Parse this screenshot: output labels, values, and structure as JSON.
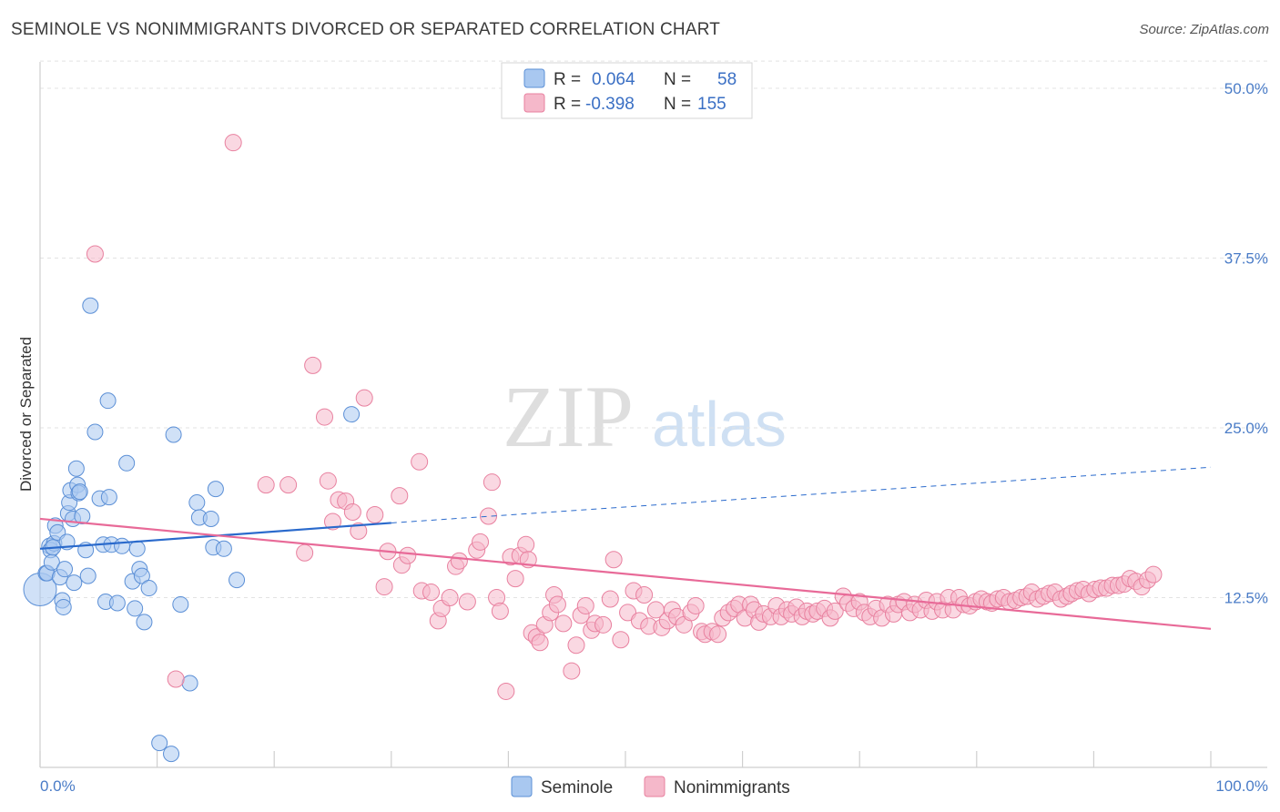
{
  "header": {
    "title": "SEMINOLE VS NONIMMIGRANTS DIVORCED OR SEPARATED CORRELATION CHART",
    "source": "Source: ZipAtlas.com"
  },
  "watermark": {
    "zip": "ZIP",
    "atlas": "atlas"
  },
  "legend": {
    "rows": [
      {
        "r_label": "R =",
        "r_value": "0.064",
        "n_label": "N =",
        "n_value": "58",
        "color": "#a9c8f0"
      },
      {
        "r_label": "R =",
        "r_value": "-0.398",
        "n_label": "N =",
        "n_value": "155",
        "color": "#f5b8ca"
      }
    ]
  },
  "bottom_legend": {
    "series1": "Seminole",
    "series2": "Nonimmigrants"
  },
  "colors": {
    "seminole_fill": "#a9c8f0",
    "seminole_stroke": "#5b8fd6",
    "seminole_line": "#2a6acc",
    "nonimm_fill": "#f5b8ca",
    "nonimm_stroke": "#e8809f",
    "nonimm_line": "#e86a98"
  },
  "chart_data": {
    "type": "scatter",
    "title": "SEMINOLE VS NONIMMIGRANTS DIVORCED OR SEPARATED CORRELATION CHART",
    "xlabel": "",
    "ylabel": "Divorced or Separated",
    "xlim": [
      0,
      100
    ],
    "ylim": [
      0,
      52
    ],
    "x_tick_labels": [
      "0.0%",
      "100.0%"
    ],
    "y_ticks": [
      12.5,
      25.0,
      37.5,
      50.0
    ],
    "y_tick_labels": [
      "12.5%",
      "25.0%",
      "37.5%",
      "50.0%"
    ],
    "grid": true,
    "series": [
      {
        "name": "Seminole",
        "r": 0.064,
        "n": 58,
        "trend": {
          "x0": 0,
          "y0": 16.1,
          "x1": 30,
          "y1": 18.0,
          "dash_x1": 100,
          "dash_y1": 22.1
        },
        "points": [
          [
            0,
            13.1
          ],
          [
            0.5,
            14.3
          ],
          [
            0.6,
            14.3
          ],
          [
            0.8,
            16.3
          ],
          [
            0.9,
            16.0
          ],
          [
            1.0,
            15.1
          ],
          [
            1.2,
            16.5
          ],
          [
            1.3,
            17.8
          ],
          [
            1.5,
            17.3
          ],
          [
            1.7,
            14.0
          ],
          [
            1.9,
            12.3
          ],
          [
            2.0,
            11.8
          ],
          [
            2.1,
            14.6
          ],
          [
            2.3,
            16.6
          ],
          [
            2.4,
            18.7
          ],
          [
            2.5,
            19.5
          ],
          [
            2.6,
            20.4
          ],
          [
            2.8,
            18.3
          ],
          [
            2.9,
            13.6
          ],
          [
            3.1,
            22.0
          ],
          [
            3.2,
            20.8
          ],
          [
            3.3,
            20.2
          ],
          [
            3.4,
            20.3
          ],
          [
            3.6,
            18.5
          ],
          [
            3.9,
            16.0
          ],
          [
            4.1,
            14.1
          ],
          [
            4.3,
            34.0
          ],
          [
            4.7,
            24.7
          ],
          [
            5.1,
            19.8
          ],
          [
            5.4,
            16.4
          ],
          [
            5.6,
            12.2
          ],
          [
            5.8,
            27.0
          ],
          [
            6.1,
            16.4
          ],
          [
            6.6,
            12.1
          ],
          [
            7.0,
            16.3
          ],
          [
            7.4,
            22.4
          ],
          [
            7.9,
            13.7
          ],
          [
            8.3,
            16.1
          ],
          [
            8.5,
            14.6
          ],
          [
            8.7,
            14.1
          ],
          [
            8.9,
            10.7
          ],
          [
            9.3,
            13.2
          ],
          [
            10.2,
            1.8
          ],
          [
            11.2,
            1.0
          ],
          [
            11.4,
            24.5
          ],
          [
            12.0,
            12.0
          ],
          [
            12.8,
            6.2
          ],
          [
            13.4,
            19.5
          ],
          [
            13.6,
            18.4
          ],
          [
            14.6,
            18.3
          ],
          [
            14.8,
            16.2
          ],
          [
            15.0,
            20.5
          ],
          [
            15.7,
            16.1
          ],
          [
            16.8,
            13.8
          ],
          [
            26.6,
            26.0
          ],
          [
            5.9,
            19.9
          ],
          [
            8.1,
            11.7
          ],
          [
            1.1,
            16.2
          ]
        ]
      },
      {
        "name": "Nonimmigrants",
        "r": -0.398,
        "n": 155,
        "trend": {
          "x0": 0,
          "y0": 18.3,
          "x1": 100,
          "y1": 10.2
        },
        "points": [
          [
            4.7,
            37.8
          ],
          [
            11.6,
            6.5
          ],
          [
            16.5,
            46.0
          ],
          [
            19.3,
            20.8
          ],
          [
            21.2,
            20.8
          ],
          [
            22.6,
            15.8
          ],
          [
            23.3,
            29.6
          ],
          [
            24.3,
            25.8
          ],
          [
            24.6,
            21.1
          ],
          [
            25.0,
            18.1
          ],
          [
            25.5,
            19.7
          ],
          [
            26.1,
            19.6
          ],
          [
            26.7,
            18.8
          ],
          [
            27.2,
            17.4
          ],
          [
            27.7,
            27.2
          ],
          [
            28.6,
            18.6
          ],
          [
            29.4,
            13.3
          ],
          [
            29.7,
            15.9
          ],
          [
            30.7,
            20.0
          ],
          [
            30.9,
            14.9
          ],
          [
            31.4,
            15.6
          ],
          [
            32.4,
            22.5
          ],
          [
            32.6,
            13.0
          ],
          [
            33.4,
            12.9
          ],
          [
            34.0,
            10.8
          ],
          [
            34.3,
            11.7
          ],
          [
            35.0,
            12.5
          ],
          [
            35.5,
            14.8
          ],
          [
            35.8,
            15.2
          ],
          [
            36.5,
            12.2
          ],
          [
            37.3,
            16.0
          ],
          [
            37.6,
            16.6
          ],
          [
            38.3,
            18.5
          ],
          [
            38.6,
            21.0
          ],
          [
            39.0,
            12.5
          ],
          [
            39.3,
            11.5
          ],
          [
            39.8,
            5.6
          ],
          [
            40.2,
            15.5
          ],
          [
            40.6,
            13.9
          ],
          [
            41.0,
            15.6
          ],
          [
            41.5,
            16.4
          ],
          [
            41.7,
            15.3
          ],
          [
            42.0,
            9.9
          ],
          [
            42.4,
            9.6
          ],
          [
            42.7,
            9.2
          ],
          [
            43.1,
            10.5
          ],
          [
            43.6,
            11.4
          ],
          [
            43.9,
            12.7
          ],
          [
            44.2,
            12.0
          ],
          [
            44.7,
            10.6
          ],
          [
            45.4,
            7.1
          ],
          [
            45.8,
            9.0
          ],
          [
            46.2,
            11.2
          ],
          [
            46.6,
            11.9
          ],
          [
            47.1,
            10.1
          ],
          [
            47.4,
            10.6
          ],
          [
            48.1,
            10.5
          ],
          [
            48.7,
            12.4
          ],
          [
            49.0,
            15.3
          ],
          [
            49.6,
            9.4
          ],
          [
            50.2,
            11.4
          ],
          [
            50.7,
            13.0
          ],
          [
            51.2,
            10.8
          ],
          [
            51.6,
            12.7
          ],
          [
            52.0,
            10.4
          ],
          [
            52.6,
            11.6
          ],
          [
            53.1,
            10.3
          ],
          [
            53.6,
            10.8
          ],
          [
            54.0,
            11.6
          ],
          [
            54.4,
            11.1
          ],
          [
            55.0,
            10.5
          ],
          [
            55.6,
            11.4
          ],
          [
            56.0,
            11.9
          ],
          [
            56.5,
            10.0
          ],
          [
            56.8,
            9.8
          ],
          [
            57.4,
            10.0
          ],
          [
            57.9,
            9.8
          ],
          [
            58.3,
            11.0
          ],
          [
            58.8,
            11.4
          ],
          [
            59.3,
            11.7
          ],
          [
            59.7,
            12.0
          ],
          [
            60.2,
            11.0
          ],
          [
            60.7,
            12.0
          ],
          [
            61.0,
            11.6
          ],
          [
            61.4,
            10.7
          ],
          [
            61.8,
            11.3
          ],
          [
            62.4,
            11.1
          ],
          [
            62.9,
            11.9
          ],
          [
            63.3,
            11.1
          ],
          [
            63.8,
            11.6
          ],
          [
            64.2,
            11.3
          ],
          [
            64.6,
            11.8
          ],
          [
            65.1,
            11.1
          ],
          [
            65.5,
            11.5
          ],
          [
            66.0,
            11.3
          ],
          [
            66.4,
            11.5
          ],
          [
            67.0,
            11.7
          ],
          [
            67.5,
            11.0
          ],
          [
            67.9,
            11.5
          ],
          [
            68.6,
            12.6
          ],
          [
            69.0,
            12.1
          ],
          [
            69.5,
            11.7
          ],
          [
            70.0,
            12.2
          ],
          [
            70.4,
            11.4
          ],
          [
            70.9,
            11.1
          ],
          [
            71.4,
            11.7
          ],
          [
            71.9,
            11.0
          ],
          [
            72.4,
            12.0
          ],
          [
            72.9,
            11.3
          ],
          [
            73.3,
            12.0
          ],
          [
            73.8,
            12.2
          ],
          [
            74.3,
            11.4
          ],
          [
            74.7,
            12.0
          ],
          [
            75.2,
            11.6
          ],
          [
            75.7,
            12.3
          ],
          [
            76.2,
            11.5
          ],
          [
            76.6,
            12.2
          ],
          [
            77.1,
            11.6
          ],
          [
            77.6,
            12.5
          ],
          [
            78.0,
            11.6
          ],
          [
            78.5,
            12.5
          ],
          [
            78.9,
            12.0
          ],
          [
            79.4,
            11.9
          ],
          [
            79.9,
            12.2
          ],
          [
            80.4,
            12.4
          ],
          [
            80.9,
            12.2
          ],
          [
            81.3,
            12.1
          ],
          [
            81.8,
            12.4
          ],
          [
            82.3,
            12.5
          ],
          [
            82.8,
            12.2
          ],
          [
            83.3,
            12.3
          ],
          [
            83.8,
            12.5
          ],
          [
            84.3,
            12.6
          ],
          [
            84.7,
            12.9
          ],
          [
            85.2,
            12.4
          ],
          [
            85.7,
            12.6
          ],
          [
            86.2,
            12.8
          ],
          [
            86.7,
            12.9
          ],
          [
            87.2,
            12.4
          ],
          [
            87.7,
            12.6
          ],
          [
            88.1,
            12.8
          ],
          [
            88.6,
            13.0
          ],
          [
            89.1,
            13.1
          ],
          [
            89.6,
            12.8
          ],
          [
            90.1,
            13.1
          ],
          [
            90.6,
            13.2
          ],
          [
            91.1,
            13.2
          ],
          [
            91.6,
            13.4
          ],
          [
            92.1,
            13.4
          ],
          [
            92.6,
            13.5
          ],
          [
            93.1,
            13.9
          ],
          [
            93.6,
            13.7
          ],
          [
            94.1,
            13.3
          ],
          [
            94.6,
            13.8
          ],
          [
            95.1,
            14.2
          ]
        ]
      }
    ]
  }
}
